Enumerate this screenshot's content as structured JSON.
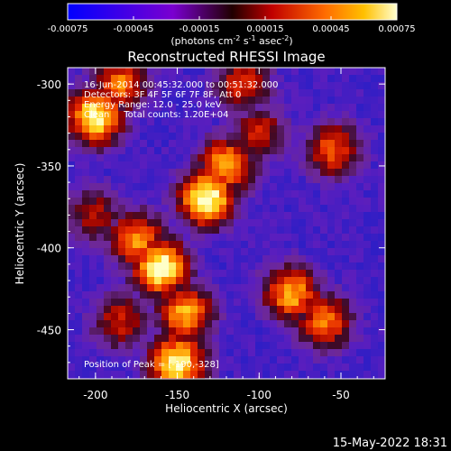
{
  "chart_data": {
    "type": "heatmap",
    "title": "Reconstructed RHESSI Image",
    "colorbar": {
      "ticks": [
        "-0.00075",
        "-0.00045",
        "-0.00015",
        "0.00015",
        "0.00045",
        "0.00075"
      ],
      "range": [
        -0.00075,
        0.00075
      ],
      "unit_label_parts": [
        "(photons cm",
        "-2",
        " s",
        "-1",
        " asec",
        "-2",
        ")"
      ]
    },
    "xlabel": "Heliocentric X (arcsec)",
    "ylabel": "Heliocentric Y (arcsec)",
    "x_ticks": [
      "-200",
      "-150",
      "-100",
      "-50"
    ],
    "x_tick_values": [
      -200,
      -150,
      -100,
      -50
    ],
    "y_ticks": [
      "-300",
      "-350",
      "-400",
      "-450"
    ],
    "y_tick_values": [
      -300,
      -350,
      -400,
      -450
    ],
    "xlim": [
      -217,
      -23
    ],
    "ylim": [
      -480,
      -290
    ],
    "annotations": [
      "16-Jun-2014 00:45:32.000 to 00:51:32.000",
      "Detectors: 3F 4F 5F 6F 7F 8F, Att 0",
      "Energy Range: 12.0 - 25.0 keV",
      "Clean     Total counts: 1.20E+04"
    ],
    "peak_label": "Position of Peak = [-190,-328]",
    "grid": false,
    "emission_regions": [
      {
        "x": -200,
        "y": -320,
        "level": 0.95
      },
      {
        "x": -185,
        "y": -300,
        "level": 0.7
      },
      {
        "x": -132,
        "y": -370,
        "level": 1.0
      },
      {
        "x": -120,
        "y": -350,
        "level": 0.8
      },
      {
        "x": -160,
        "y": -412,
        "level": 1.0
      },
      {
        "x": -145,
        "y": -440,
        "level": 0.8
      },
      {
        "x": -175,
        "y": -395,
        "level": 0.75
      },
      {
        "x": -80,
        "y": -428,
        "level": 0.8
      },
      {
        "x": -60,
        "y": -445,
        "level": 0.7
      },
      {
        "x": -55,
        "y": -340,
        "level": 0.65
      },
      {
        "x": -100,
        "y": -330,
        "level": 0.55
      },
      {
        "x": -110,
        "y": -300,
        "level": 0.6
      },
      {
        "x": -150,
        "y": -470,
        "level": 0.95
      },
      {
        "x": -185,
        "y": -445,
        "level": 0.55
      },
      {
        "x": -200,
        "y": -380,
        "level": 0.5
      }
    ],
    "background_level": 0.12
  },
  "footer": {
    "timestamp": "15-May-2022 18:31"
  }
}
